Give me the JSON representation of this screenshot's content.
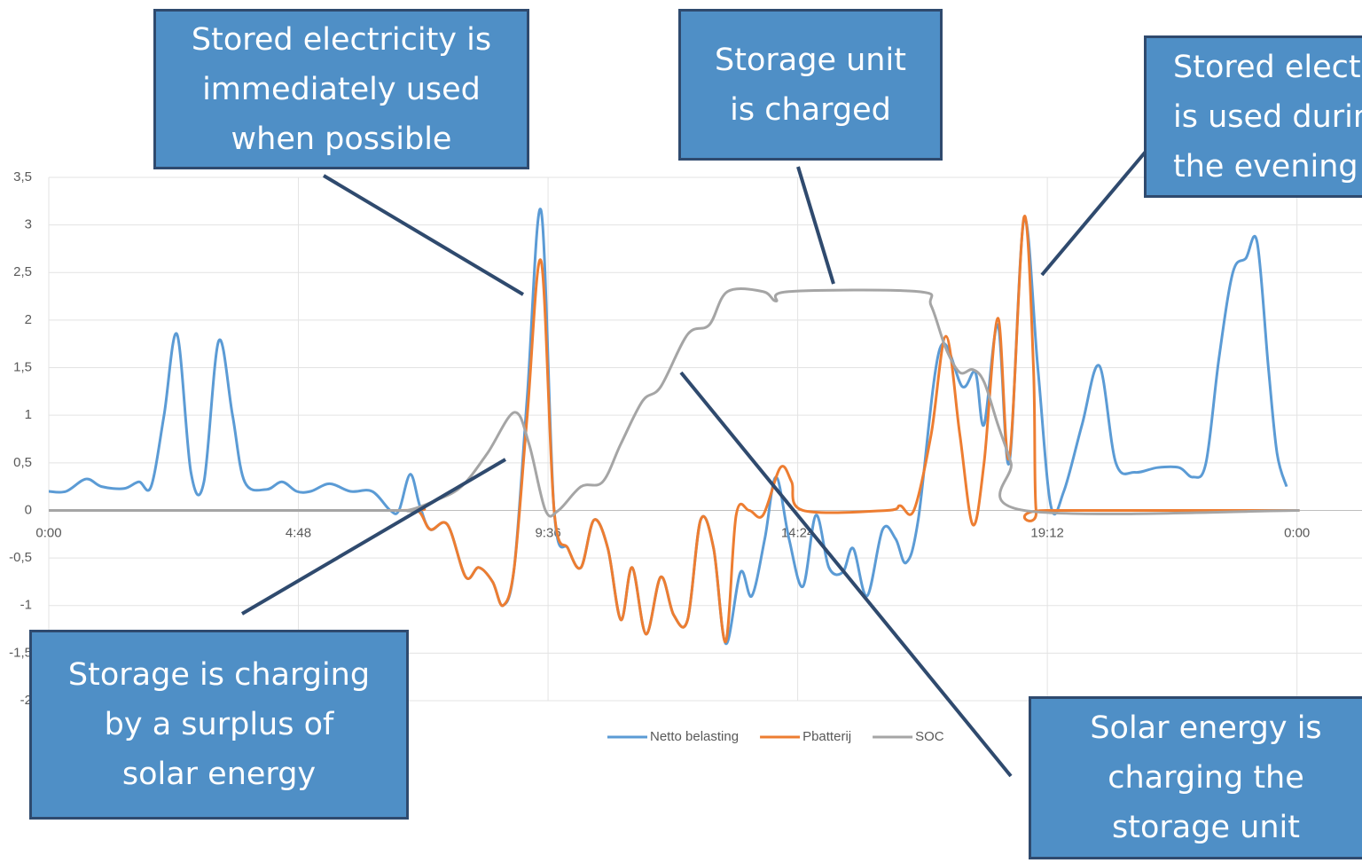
{
  "chart_data": {
    "type": "line",
    "xlim": [
      0,
      1515
    ],
    "xticks": [
      {
        "value": 0,
        "label": "0:00"
      },
      {
        "value": 288,
        "label": "4:48"
      },
      {
        "value": 576,
        "label": "9:36"
      },
      {
        "value": 864,
        "label": "14:24"
      },
      {
        "value": 1152,
        "label": "19:12"
      },
      {
        "value": 1440,
        "label": "0:00"
      }
    ],
    "ylim": [
      -2,
      3.5
    ],
    "yticks": [
      {
        "value": -2,
        "label": "-2"
      },
      {
        "value": -1.5,
        "label": "-1,5"
      },
      {
        "value": -1,
        "label": "-1"
      },
      {
        "value": -0.5,
        "label": "-0,5"
      },
      0,
      {
        "value": 0.5,
        "label": "0,5"
      },
      1,
      {
        "value": 1.5,
        "label": "1,5"
      },
      2,
      {
        "value": 2.5,
        "label": "2,5"
      },
      3,
      {
        "value": 3.5,
        "label": "3,5"
      }
    ],
    "grid": true,
    "legend": "bottom",
    "series": [
      {
        "name": "Netto belasting",
        "color": "#5b9bd5",
        "x": [
          0,
          20,
          43,
          61,
          87,
          104,
          118,
          133,
          148,
          164,
          179,
          196,
          212,
          226,
          251,
          269,
          286,
          302,
          324,
          348,
          373,
          394,
          404,
          417,
          428,
          440,
          460,
          481,
          496,
          512,
          524,
          537,
          552,
          568,
          583,
          599,
          614,
          629,
          645,
          660,
          673,
          689,
          706,
          721,
          737,
          752,
          767,
          781,
          798,
          811,
          826,
          839,
          854,
          870,
          885,
          900,
          916,
          928,
          944,
          962,
          977,
          989,
          1003,
          1028,
          1054,
          1069,
          1079,
          1095,
          1108,
          1125,
          1141,
          1156,
          1171,
          1192,
          1212,
          1231,
          1253,
          1279,
          1304,
          1320,
          1335,
          1350,
          1366,
          1381,
          1394,
          1407,
          1417,
          1428
        ],
        "values": [
          0.2,
          0.2,
          0.33,
          0.25,
          0.23,
          0.3,
          0.25,
          1.0,
          1.85,
          0.4,
          0.3,
          1.78,
          1.0,
          0.3,
          0.22,
          0.3,
          0.2,
          0.2,
          0.28,
          0.2,
          0.2,
          0.0,
          0.0,
          0.38,
          0.05,
          -0.2,
          -0.15,
          -0.7,
          -0.6,
          -0.75,
          -1.0,
          -0.6,
          1.2,
          3.15,
          0.0,
          -0.4,
          -0.6,
          -0.1,
          -0.4,
          -1.15,
          -0.6,
          -1.3,
          -0.7,
          -1.1,
          -1.15,
          -0.1,
          -0.4,
          -1.4,
          -0.65,
          -0.9,
          -0.3,
          0.35,
          -0.3,
          -0.8,
          -0.05,
          -0.6,
          -0.65,
          -0.4,
          -0.9,
          -0.2,
          -0.3,
          -0.55,
          -0.1,
          1.7,
          1.3,
          1.45,
          0.9,
          1.95,
          0.5,
          3.05,
          1.5,
          0.05,
          0.2,
          0.9,
          1.52,
          0.5,
          0.4,
          0.45,
          0.45,
          0.35,
          0.5,
          1.6,
          2.5,
          2.65,
          2.82,
          1.5,
          0.6,
          0.25
        ]
      },
      {
        "name": "Pbatterij",
        "color": "#ed7d31",
        "x": [
          0,
          394,
          425,
          440,
          460,
          481,
          496,
          512,
          524,
          537,
          552,
          568,
          583,
          599,
          614,
          629,
          645,
          660,
          673,
          689,
          706,
          721,
          737,
          752,
          767,
          781,
          793,
          808,
          824,
          844,
          857,
          870,
          967,
          982,
          998,
          1018,
          1035,
          1051,
          1066,
          1079,
          1095,
          1108,
          1125,
          1136,
          1139,
          1151,
          1443
        ],
        "values": [
          0,
          0,
          0,
          -0.2,
          -0.15,
          -0.7,
          -0.6,
          -0.75,
          -1.0,
          -0.6,
          1.0,
          2.62,
          0.0,
          -0.4,
          -0.6,
          -0.1,
          -0.4,
          -1.15,
          -0.6,
          -1.3,
          -0.7,
          -1.1,
          -1.15,
          -0.1,
          -0.4,
          -1.38,
          -0.05,
          0.0,
          -0.05,
          0.45,
          0.3,
          0.0,
          0.0,
          0.05,
          0.0,
          0.8,
          1.83,
          0.8,
          -0.15,
          0.5,
          2.02,
          0.55,
          3.08,
          1.5,
          0,
          0,
          0
        ]
      },
      {
        "name": "SOC",
        "color": "#a5a5a5",
        "x": [
          0,
          394,
          414,
          445,
          476,
          506,
          537,
          554,
          573,
          588,
          614,
          639,
          660,
          685,
          706,
          737,
          762,
          783,
          824,
          839,
          854,
          1003,
          1018,
          1035,
          1051,
          1066,
          1079,
          1095,
          1110,
          1125,
          1443
        ],
        "values": [
          0,
          0,
          0,
          0.1,
          0.25,
          0.6,
          1.03,
          0.7,
          0,
          0,
          0.25,
          0.3,
          0.7,
          1.15,
          1.3,
          1.85,
          1.95,
          2.3,
          2.3,
          2.2,
          2.3,
          2.3,
          2.15,
          1.7,
          1.45,
          1.48,
          1.35,
          0.9,
          0.5,
          0,
          0
        ]
      }
    ],
    "annotations": [
      {
        "text": [
          "Stored electricity is",
          "immediately used",
          "when possible"
        ]
      },
      {
        "text": [
          "Storage unit",
          "is charged"
        ]
      },
      {
        "text": [
          "Stored electricity",
          "is used during",
          "the evening"
        ]
      },
      {
        "text": [
          "Storage is charging",
          "by a surplus of",
          "solar energy"
        ]
      },
      {
        "text": [
          "Solar energy is",
          "charging the",
          "storage unit"
        ]
      }
    ]
  }
}
